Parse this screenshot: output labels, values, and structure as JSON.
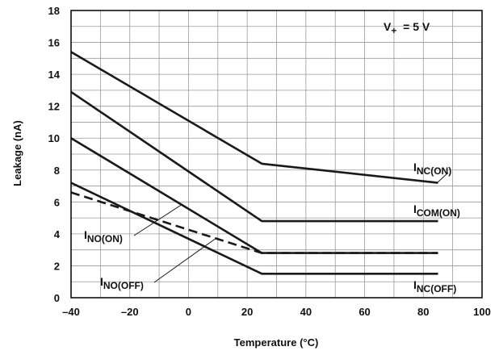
{
  "chart_data": {
    "type": "line",
    "xlabel": "Temperature (°C)",
    "ylabel": "Leakage (nA)",
    "xlim": [
      -40,
      100
    ],
    "ylim": [
      0,
      18
    ],
    "x_ticks": [
      "–40",
      "–20",
      "0",
      "20",
      "40",
      "60",
      "80",
      "100"
    ],
    "y_ticks": [
      "0",
      "2",
      "4",
      "6",
      "8",
      "10",
      "12",
      "14",
      "16",
      "18"
    ],
    "grid": true,
    "condition": {
      "main": "V",
      "sub": "+",
      "rest": "  = 5 V"
    },
    "series": [
      {
        "name": "NC(ON)",
        "style": "solid",
        "x": [
          -40,
          25,
          85
        ],
        "y": [
          15.4,
          8.4,
          7.2
        ]
      },
      {
        "name": "COM(ON)",
        "style": "solid",
        "x": [
          -40,
          25,
          85
        ],
        "y": [
          12.9,
          4.8,
          4.8
        ]
      },
      {
        "name": "NO(ON)",
        "style": "solid",
        "x": [
          -40,
          25,
          85
        ],
        "y": [
          10.0,
          2.8,
          2.8
        ]
      },
      {
        "name": "NC(OFF)",
        "style": "solid",
        "x": [
          -40,
          25,
          85
        ],
        "y": [
          7.2,
          1.5,
          1.5
        ]
      },
      {
        "name": "NO(OFF)",
        "style": "dashed",
        "x": [
          -40,
          25,
          85
        ],
        "y": [
          6.6,
          2.8,
          2.8
        ]
      }
    ],
    "annotations": [
      {
        "id": "nc-on",
        "main": "I",
        "sub": "NC(ON)"
      },
      {
        "id": "com-on",
        "main": "I",
        "sub": "COM(ON)"
      },
      {
        "id": "no-on",
        "main": "I",
        "sub": "NO(ON)"
      },
      {
        "id": "no-off",
        "main": "I",
        "sub": "NO(OFF)"
      },
      {
        "id": "nc-off",
        "main": "I",
        "sub": "NC(OFF)"
      }
    ],
    "colors": {
      "line": "#1a1a1a",
      "grid": "#9a9a9a",
      "frame": "#000000"
    }
  }
}
